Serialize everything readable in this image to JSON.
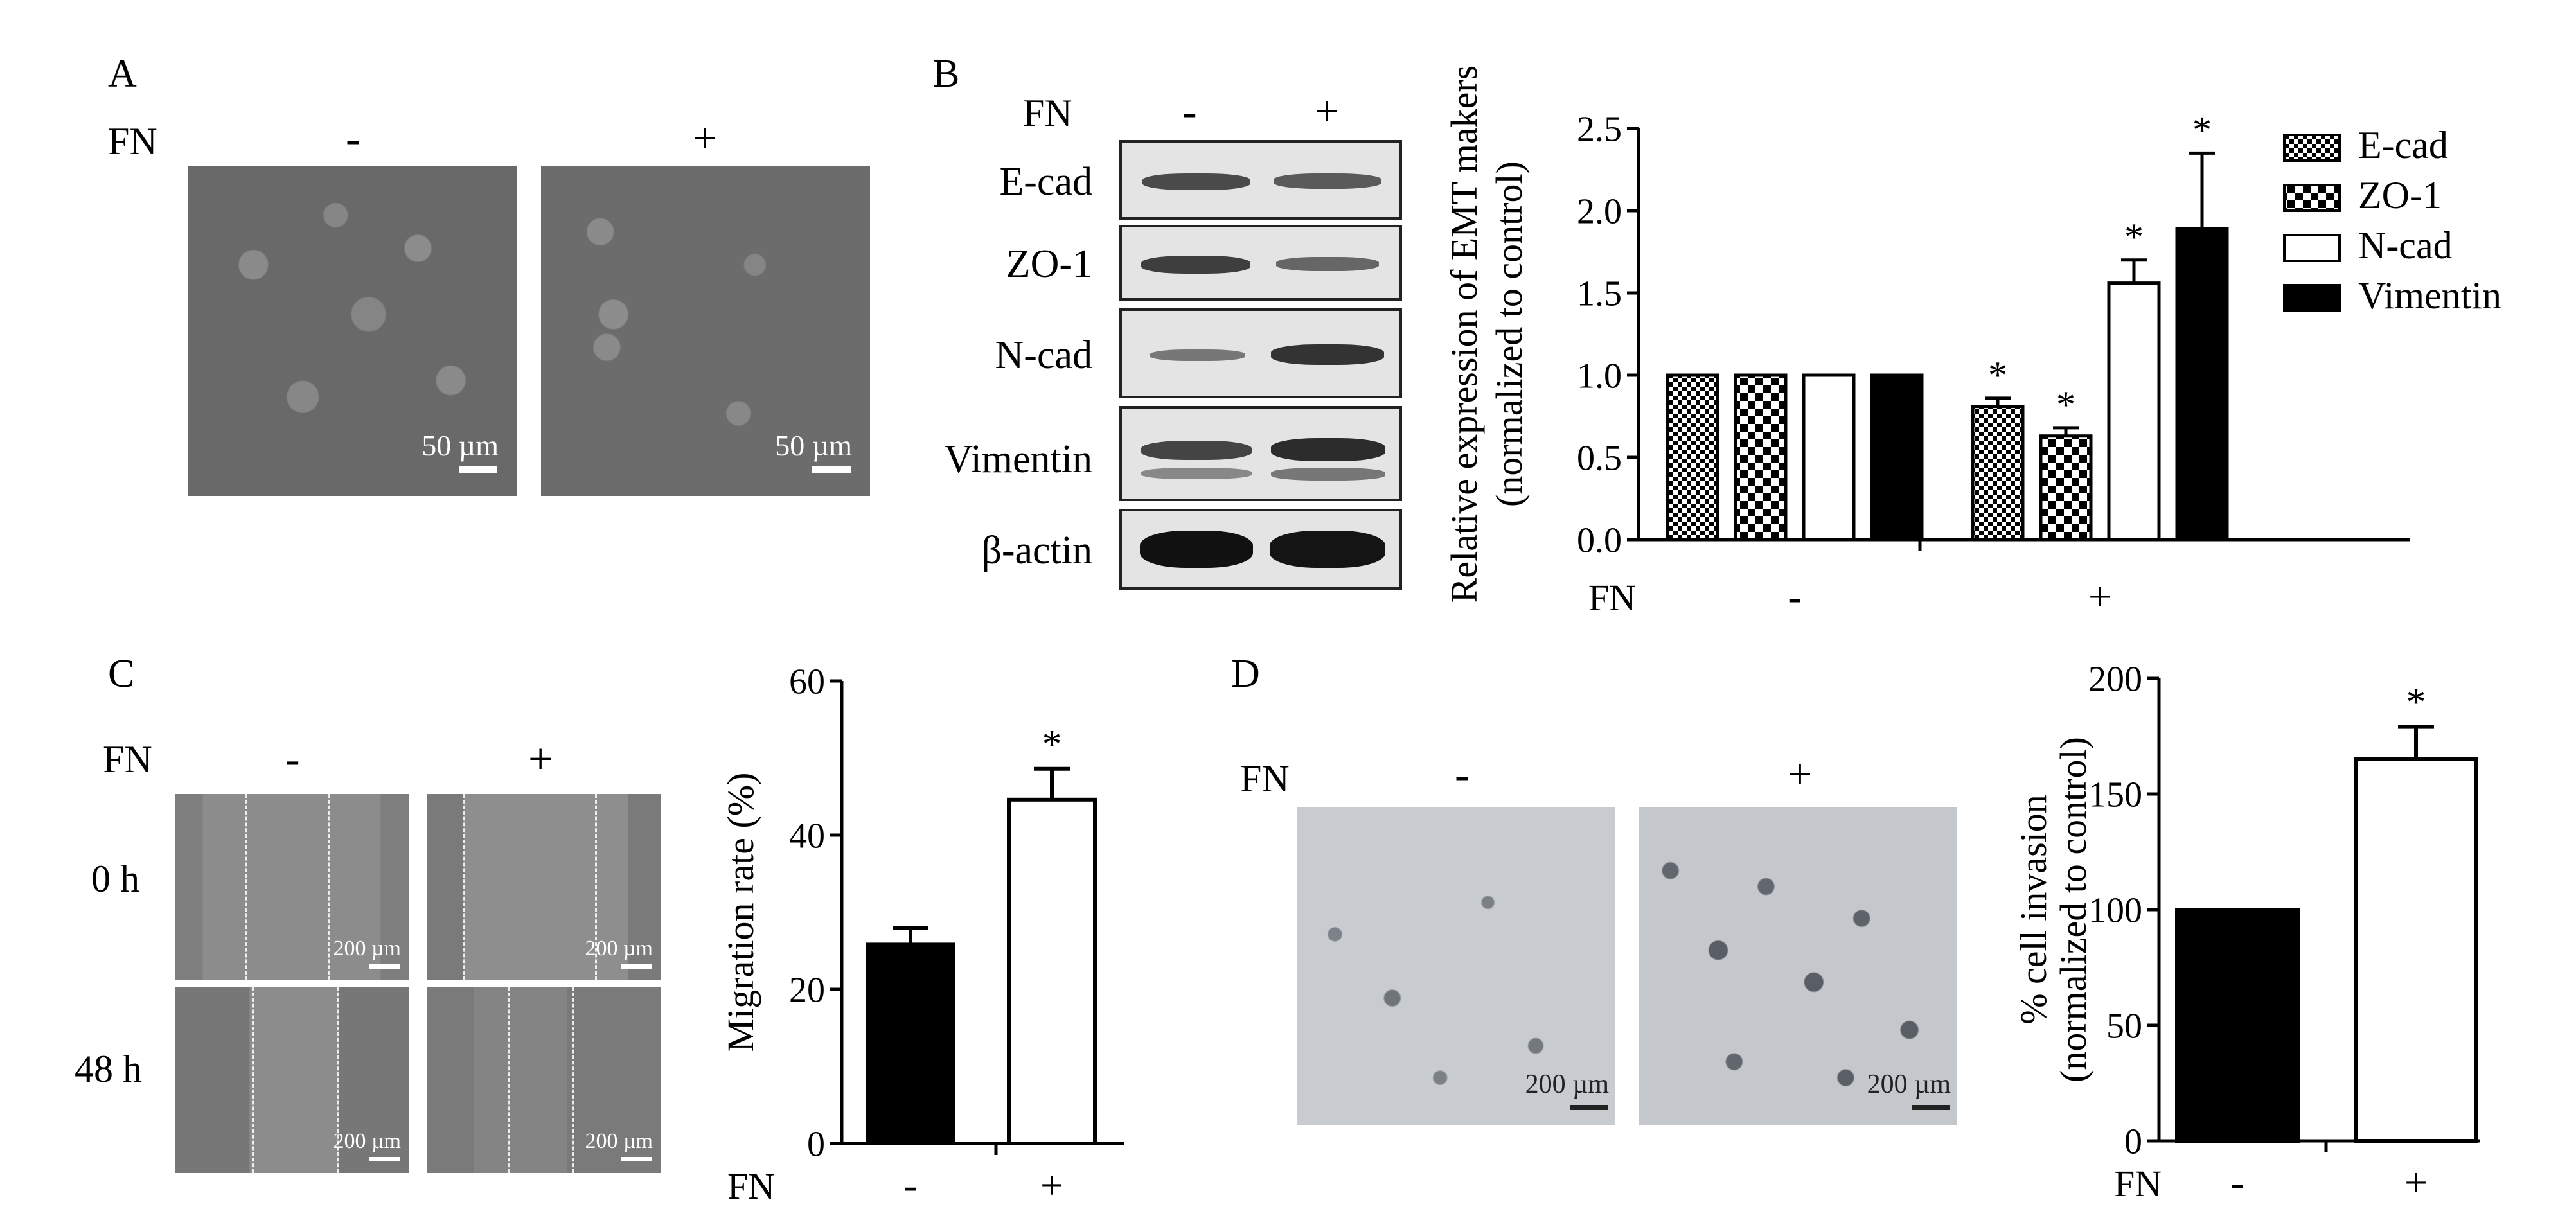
{
  "panels": {
    "A": {
      "label": "A",
      "fn_label": "FN",
      "minus": "-",
      "plus": "+",
      "scale_minus": "50 µm",
      "scale_plus": "50 µm"
    },
    "B": {
      "label": "B",
      "fn_label": "FN",
      "minus": "-",
      "plus": "+",
      "blot_rows": [
        "E-cad",
        "ZO-1",
        "N-cad",
        "Vimentin",
        "β-actin"
      ]
    },
    "C": {
      "label": "C",
      "fn_label": "FN",
      "minus": "-",
      "plus": "+",
      "rows": [
        "0 h",
        "48 h"
      ],
      "scale": "200 µm"
    },
    "D": {
      "label": "D",
      "fn_label": "FN",
      "minus": "-",
      "plus": "+",
      "scale": "200 µm"
    }
  },
  "colors": {
    "black_bar": "#000000",
    "white_bar": "#ffffff",
    "microscopy_gray": "#6b6b6b",
    "transwell_bg": "#c9cdd2"
  },
  "chart_data": [
    {
      "id": "emt-markers",
      "type": "bar",
      "ylabel": "Relative expression of EMT makers",
      "ylabel2": "(normalized to control)",
      "xlabel": "FN",
      "categories": [
        "-",
        "+"
      ],
      "ylim": [
        0,
        2.5
      ],
      "yticks": [
        "0.0",
        "0.5",
        "1.0",
        "1.5",
        "2.0",
        "2.5"
      ],
      "legend_position": "top-right",
      "series": [
        {
          "name": "E-cad",
          "pattern": "checker-fine",
          "values": [
            1.0,
            0.81
          ],
          "errors": [
            0,
            0.05
          ],
          "significant": [
            false,
            true
          ]
        },
        {
          "name": "ZO-1",
          "pattern": "checker-coarse",
          "values": [
            1.0,
            0.63
          ],
          "errors": [
            0,
            0.05
          ],
          "significant": [
            false,
            true
          ]
        },
        {
          "name": "N-cad",
          "pattern": "white",
          "values": [
            1.0,
            1.56
          ],
          "errors": [
            0,
            0.14
          ],
          "significant": [
            false,
            true
          ]
        },
        {
          "name": "Vimentin",
          "pattern": "black",
          "values": [
            1.0,
            1.89
          ],
          "errors": [
            0,
            0.46
          ],
          "significant": [
            false,
            true
          ]
        }
      ],
      "significance_mark": "*"
    },
    {
      "id": "migration-rate",
      "type": "bar",
      "ylabel": "Migration rate (%)",
      "xlabel": "FN",
      "categories": [
        "-",
        "+"
      ],
      "ylim": [
        0,
        60
      ],
      "yticks": [
        "0",
        "20",
        "40",
        "60"
      ],
      "values": [
        25.8,
        44.6
      ],
      "errors": [
        2.2,
        4.0
      ],
      "fills": [
        "black",
        "white"
      ],
      "significant": [
        false,
        true
      ],
      "significance_mark": "*"
    },
    {
      "id": "cell-invasion",
      "type": "bar",
      "ylabel": "% cell invasion",
      "ylabel2": "(normalized to control)",
      "xlabel": "FN",
      "categories": [
        "-",
        "+"
      ],
      "ylim": [
        0,
        200
      ],
      "yticks": [
        "0",
        "50",
        "100",
        "150",
        "200"
      ],
      "values": [
        100,
        165
      ],
      "errors": [
        0,
        14
      ],
      "fills": [
        "black",
        "white"
      ],
      "significant": [
        false,
        true
      ],
      "significance_mark": "*"
    }
  ]
}
